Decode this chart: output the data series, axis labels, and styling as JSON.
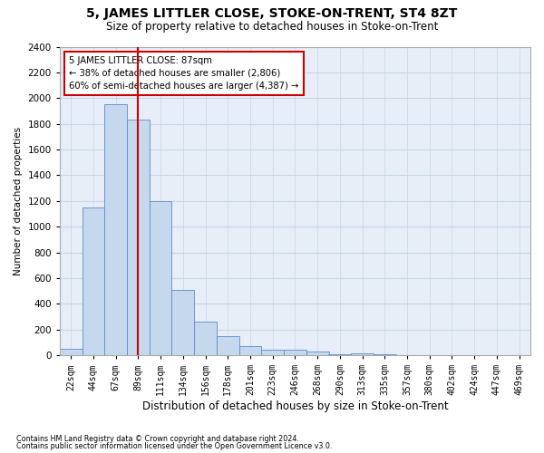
{
  "title": "5, JAMES LITTLER CLOSE, STOKE-ON-TRENT, ST4 8ZT",
  "subtitle": "Size of property relative to detached houses in Stoke-on-Trent",
  "xlabel": "Distribution of detached houses by size in Stoke-on-Trent",
  "ylabel": "Number of detached properties",
  "categories": [
    "22sqm",
    "44sqm",
    "67sqm",
    "89sqm",
    "111sqm",
    "134sqm",
    "156sqm",
    "178sqm",
    "201sqm",
    "223sqm",
    "246sqm",
    "268sqm",
    "290sqm",
    "313sqm",
    "335sqm",
    "357sqm",
    "380sqm",
    "402sqm",
    "424sqm",
    "447sqm",
    "469sqm"
  ],
  "values": [
    50,
    1150,
    1950,
    1830,
    1200,
    510,
    265,
    150,
    75,
    40,
    40,
    30,
    10,
    15,
    5,
    2,
    2,
    2,
    1,
    1,
    1
  ],
  "bar_color": "#c5d8ed",
  "bar_edge_color": "#5b8cc8",
  "reference_line_x": 3.5,
  "reference_line_color": "#cc0000",
  "annotation_text": "5 JAMES LITTLER CLOSE: 87sqm\n← 38% of detached houses are smaller (2,806)\n60% of semi-detached houses are larger (4,387) →",
  "annotation_box_color": "#cc0000",
  "ylim": [
    0,
    2400
  ],
  "yticks": [
    0,
    200,
    400,
    600,
    800,
    1000,
    1200,
    1400,
    1600,
    1800,
    2000,
    2200,
    2400
  ],
  "grid_color": "#c8d4e8",
  "background_color": "#e8eef8",
  "footnote1": "Contains HM Land Registry data © Crown copyright and database right 2024.",
  "footnote2": "Contains public sector information licensed under the Open Government Licence v3.0.",
  "title_fontsize": 10,
  "subtitle_fontsize": 8.5,
  "xlabel_fontsize": 8.5,
  "ylabel_fontsize": 7.5,
  "annot_fontsize": 7.2,
  "tick_fontsize": 7.0,
  "ytick_fontsize": 7.5
}
